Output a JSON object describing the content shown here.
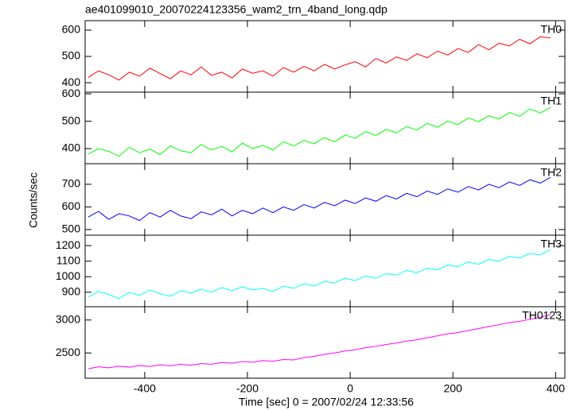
{
  "figure": {
    "title": "ae401099010_20070224123356_wam2_trn_4band_long.qdp",
    "xlabel": "Time [sec] 0 = 2007/02/24 12:33:56",
    "ylabel": "Counts/sec"
  },
  "chart_data": [
    {
      "type": "line",
      "x": [
        -510,
        -490,
        -470,
        -450,
        -430,
        -410,
        -390,
        -370,
        -350,
        -330,
        -310,
        -290,
        -270,
        -250,
        -230,
        -210,
        -190,
        -170,
        -150,
        -130,
        -110,
        -90,
        -70,
        -50,
        -30,
        -10,
        10,
        30,
        50,
        70,
        90,
        110,
        130,
        150,
        170,
        190,
        210,
        230,
        250,
        270,
        290,
        310,
        330,
        350,
        370,
        390
      ],
      "series": [
        {
          "name": "TH0",
          "color": "#ff0000",
          "values": [
            420,
            445,
            430,
            410,
            440,
            425,
            455,
            435,
            415,
            445,
            430,
            460,
            428,
            440,
            418,
            452,
            436,
            445,
            425,
            458,
            440,
            462,
            445,
            470,
            452,
            468,
            480,
            460,
            492,
            475,
            498,
            485,
            510,
            495,
            520,
            505,
            530,
            515,
            545,
            525,
            550,
            540,
            565,
            548,
            575,
            570
          ]
        }
      ],
      "xlim": [
        -516,
        418
      ],
      "ylim": [
        364,
        636
      ],
      "xticks": [
        -400,
        -200,
        0,
        200,
        400
      ],
      "yticks": [
        400,
        500,
        600
      ]
    },
    {
      "type": "line",
      "x": [
        -510,
        -490,
        -470,
        -450,
        -430,
        -410,
        -390,
        -370,
        -350,
        -330,
        -310,
        -290,
        -270,
        -250,
        -230,
        -210,
        -190,
        -170,
        -150,
        -130,
        -110,
        -90,
        -70,
        -50,
        -30,
        -10,
        10,
        30,
        50,
        70,
        90,
        110,
        130,
        150,
        170,
        190,
        210,
        230,
        250,
        270,
        290,
        310,
        330,
        350,
        370,
        390
      ],
      "series": [
        {
          "name": "TH1",
          "color": "#00ff00",
          "values": [
            380,
            400,
            390,
            372,
            405,
            385,
            398,
            378,
            410,
            392,
            385,
            415,
            395,
            408,
            388,
            420,
            400,
            412,
            395,
            425,
            410,
            430,
            418,
            440,
            425,
            450,
            438,
            462,
            448,
            470,
            458,
            480,
            468,
            492,
            478,
            500,
            488,
            512,
            498,
            520,
            508,
            532,
            518,
            545,
            530,
            550
          ]
        }
      ],
      "xlim": [
        -516,
        418
      ],
      "ylim": [
        345,
        606
      ],
      "xticks": [
        -400,
        -200,
        0,
        200,
        400
      ],
      "yticks": [
        400,
        500,
        600
      ]
    },
    {
      "type": "line",
      "x": [
        -510,
        -490,
        -470,
        -450,
        -430,
        -410,
        -390,
        -370,
        -350,
        -330,
        -310,
        -290,
        -270,
        -250,
        -230,
        -210,
        -190,
        -170,
        -150,
        -130,
        -110,
        -90,
        -70,
        -50,
        -30,
        -10,
        10,
        30,
        50,
        70,
        90,
        110,
        130,
        150,
        170,
        190,
        210,
        230,
        250,
        270,
        290,
        310,
        330,
        350,
        370,
        390
      ],
      "series": [
        {
          "name": "TH2",
          "color": "#0000ff",
          "values": [
            555,
            580,
            545,
            570,
            560,
            540,
            575,
            555,
            585,
            560,
            548,
            578,
            565,
            590,
            560,
            585,
            570,
            595,
            575,
            600,
            585,
            610,
            595,
            620,
            605,
            630,
            615,
            640,
            625,
            650,
            635,
            660,
            645,
            670,
            655,
            680,
            665,
            690,
            675,
            700,
            685,
            710,
            695,
            720,
            705,
            730
          ]
        }
      ],
      "xlim": [
        -516,
        418
      ],
      "ylim": [
        475,
        791
      ],
      "xticks": [
        -400,
        -200,
        0,
        200,
        400
      ],
      "yticks": [
        500,
        600,
        700
      ]
    },
    {
      "type": "line",
      "x": [
        -510,
        -490,
        -470,
        -450,
        -430,
        -410,
        -390,
        -370,
        -350,
        -330,
        -310,
        -290,
        -270,
        -250,
        -230,
        -210,
        -190,
        -170,
        -150,
        -130,
        -110,
        -90,
        -70,
        -50,
        -30,
        -10,
        10,
        30,
        50,
        70,
        90,
        110,
        130,
        150,
        170,
        190,
        210,
        230,
        250,
        270,
        290,
        310,
        330,
        350,
        370,
        390
      ],
      "series": [
        {
          "name": "TH3",
          "color": "#00ffff",
          "values": [
            870,
            905,
            885,
            860,
            900,
            880,
            915,
            890,
            875,
            910,
            895,
            920,
            900,
            930,
            910,
            935,
            915,
            925,
            905,
            940,
            925,
            955,
            940,
            970,
            960,
            990,
            975,
            1005,
            990,
            1020,
            1010,
            1040,
            1025,
            1055,
            1045,
            1075,
            1065,
            1095,
            1080,
            1110,
            1100,
            1130,
            1120,
            1150,
            1140,
            1175
          ]
        }
      ],
      "xlim": [
        -516,
        418
      ],
      "ylim": [
        807,
        1267
      ],
      "xticks": [
        -400,
        -200,
        0,
        200,
        400
      ],
      "yticks": [
        900,
        1000,
        1100,
        1200
      ]
    },
    {
      "type": "line",
      "x": [
        -510,
        -490,
        -470,
        -450,
        -430,
        -410,
        -390,
        -370,
        -350,
        -330,
        -310,
        -290,
        -270,
        -250,
        -230,
        -210,
        -190,
        -170,
        -150,
        -130,
        -110,
        -90,
        -70,
        -50,
        -30,
        -10,
        10,
        30,
        50,
        70,
        90,
        110,
        130,
        150,
        170,
        190,
        210,
        230,
        250,
        270,
        290,
        310,
        330,
        350,
        370,
        390
      ],
      "series": [
        {
          "name": "TH0123",
          "color": "#ff00ff",
          "values": [
            2260,
            2290,
            2275,
            2300,
            2285,
            2310,
            2295,
            2320,
            2305,
            2330,
            2315,
            2340,
            2330,
            2355,
            2345,
            2370,
            2360,
            2385,
            2375,
            2400,
            2395,
            2430,
            2450,
            2480,
            2500,
            2530,
            2550,
            2580,
            2600,
            2630,
            2650,
            2680,
            2700,
            2730,
            2760,
            2790,
            2810,
            2840,
            2870,
            2900,
            2930,
            2960,
            2980,
            3010,
            3040,
            3080
          ]
        }
      ],
      "xlim": [
        -516,
        418
      ],
      "ylim": [
        2117,
        3202
      ],
      "xticks": [
        -400,
        -200,
        0,
        200,
        400
      ],
      "yticks": [
        2500,
        3000
      ]
    }
  ]
}
